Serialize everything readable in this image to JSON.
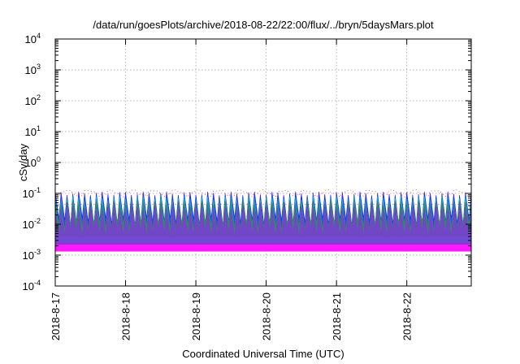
{
  "chart_data": {
    "type": "area",
    "title": "/data/run/goesPlots/archive/2018-08-22/22:00/flux/../bryn/5daysMars.plot",
    "xlabel": "Coordinated Universal Time (UTC)",
    "ylabel": "cSv/day",
    "y_scale": "log",
    "ylim": [
      0.0001,
      10000
    ],
    "xlim": [
      "2018-08-17 00:00",
      "2018-08-22 22:00"
    ],
    "grid": true,
    "x_ticks": [
      "2018-8-17",
      "2018-8-18",
      "2018-8-19",
      "2018-8-20",
      "2018-8-21",
      "2018-8-22"
    ],
    "y_ticks": [
      {
        "base": "10",
        "exp": "-4"
      },
      {
        "base": "10",
        "exp": "-3"
      },
      {
        "base": "10",
        "exp": "-2"
      },
      {
        "base": "10",
        "exp": "-1"
      },
      {
        "base": "10",
        "exp": "0"
      },
      {
        "base": "10",
        "exp": "1"
      },
      {
        "base": "10",
        "exp": "2"
      },
      {
        "base": "10",
        "exp": "3"
      },
      {
        "base": "10",
        "exp": "4"
      }
    ],
    "cycles_per_day": 12,
    "series": [
      {
        "color": "#ff00ff",
        "peak": 0.09,
        "trough": 0.003
      },
      {
        "color": "#1a2cff",
        "peak": 0.1,
        "trough": 0.012
      },
      {
        "color": "#00c8c8",
        "peak": 0.07,
        "trough": 0.006
      },
      {
        "color": "#2e8b57",
        "peak": 0.05,
        "trough": 0.009
      },
      {
        "color": "#7a3fd1",
        "peak": 0.035,
        "trough": 0.005
      },
      {
        "color": "#ff3030",
        "peak": 0.11,
        "trough": 0.1
      }
    ]
  }
}
